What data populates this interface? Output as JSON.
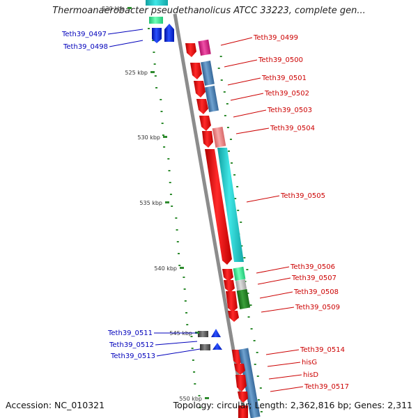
{
  "title": "Thermoanaerobacter pseudethanolicus ATCC 33223, complete gen...",
  "footer": {
    "accession": "Accession: NC_010321",
    "topology": "Topology: circular; Length: 2,362,816 bp; Genes: 2,311"
  },
  "colors": {
    "backbone": "#8c8c8c",
    "gc_dots": "#2e8b2e",
    "left_label": "#0000bb",
    "right_label": "#cc0000",
    "red_gene": "#ee1111",
    "blue_gene": "#1133ee",
    "cyan_gene": "#22cccc",
    "steel_gene": "#4f86b8",
    "pink_gene": "#e0308a",
    "salmon_gene": "#f08a8a",
    "green_gene": "#2a8a2a",
    "mint_gene": "#44ee99",
    "gray_gene": "#bdbdbd",
    "dark_gene": "#555555"
  },
  "ticks": [
    "520 kbp",
    "525 kbp",
    "530 kbp",
    "535 kbp",
    "540 kbp",
    "545 kbp",
    "550 kbp"
  ],
  "left_labels": [
    "Teth39_0497",
    "Teth39_0498",
    "Teth39_0511",
    "Teth39_0512",
    "Teth39_0513"
  ],
  "right_labels": [
    "Teth39_0499",
    "Teth39_0500",
    "Teth39_0501",
    "Teth39_0502",
    "Teth39_0503",
    "Teth39_0504",
    "Teth39_0505",
    "Teth39_0506",
    "Teth39_0507",
    "Teth39_0508",
    "Teth39_0509",
    "Teth39_0514",
    "hisG",
    "hisD",
    "Teth39_0517"
  ]
}
